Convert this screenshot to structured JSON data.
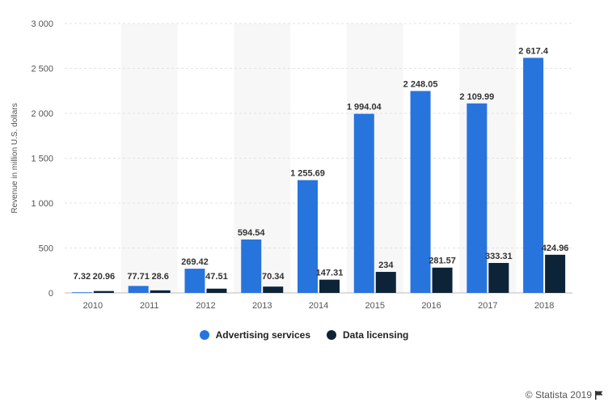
{
  "chart_data": {
    "type": "bar",
    "ylabel": "Revenue in million U.S. dollars",
    "ylim": [
      0,
      3000
    ],
    "yticks": [
      0,
      500,
      1000,
      1500,
      2000,
      2500,
      3000
    ],
    "ytick_labels": [
      "0",
      "500",
      "1 000",
      "1 500",
      "2 000",
      "2 500",
      "3 000"
    ],
    "categories": [
      "2010",
      "2011",
      "2012",
      "2013",
      "2014",
      "2015",
      "2016",
      "2017",
      "2018"
    ],
    "series": [
      {
        "name": "Advertising services",
        "color": "#2874dd",
        "values": [
          7.32,
          77.71,
          269.42,
          594.54,
          1255.69,
          1994.04,
          2248.05,
          2109.99,
          2617.4
        ],
        "labels": [
          "7.32",
          "77.71",
          "269.42",
          "594.54",
          "1 255.69",
          "1 994.04",
          "2 248.05",
          "2 109.99",
          "2 617.4"
        ]
      },
      {
        "name": "Data licensing",
        "color": "#0d2438",
        "values": [
          20.96,
          28.6,
          47.51,
          70.34,
          147.31,
          234,
          281.57,
          333.31,
          424.96
        ],
        "labels": [
          "20.96",
          "28.6",
          "47.51",
          "70.34",
          "147.31",
          "234",
          "281.57",
          "333.31",
          "424.96"
        ]
      }
    ],
    "grid": true,
    "legend_position": "bottom"
  },
  "credit": "© Statista 2019",
  "credit_icon": "flag-icon"
}
